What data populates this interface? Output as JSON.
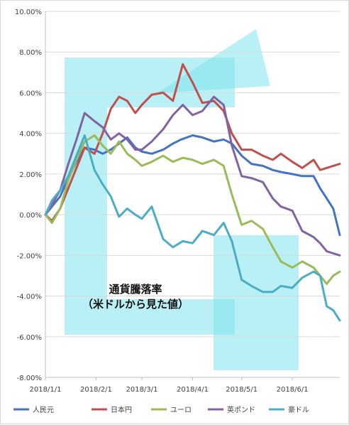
{
  "chart_data": {
    "type": "line",
    "title": "",
    "xlabel": "",
    "ylabel": "",
    "ylim": [
      -8,
      10
    ],
    "y_unit": "%",
    "y_ticks": [
      10,
      8,
      6,
      4,
      2,
      0,
      -2,
      -4,
      -6,
      -8
    ],
    "y_tick_labels": [
      "10.00%",
      "8.00%",
      "6.00%",
      "4.00%",
      "2.00%",
      "0.00%",
      "-2.00%",
      "-4.00%",
      "-6.00%",
      "-8.00%"
    ],
    "x_range": [
      "2018-01-01",
      "2018-06-30"
    ],
    "x_ticks": [
      "2018-01-01",
      "2018-02-01",
      "2018-03-01",
      "2018-04-01",
      "2018-05-01",
      "2018-06-01"
    ],
    "x_tick_labels": [
      "2018/1/1",
      "2018/2/1",
      "2018/3/1",
      "2018/4/1",
      "2018/5/1",
      "2018/6/1"
    ],
    "grid": "horizontal",
    "legend_position": "bottom",
    "annotation": [
      "通貨騰落率",
      "（米ドルから見た値）"
    ],
    "series": [
      {
        "name": "人民元",
        "color": "#4472C4",
        "points": [
          [
            "2018-01-01",
            0.0
          ],
          [
            "2018-01-05",
            0.4
          ],
          [
            "2018-01-10",
            0.9
          ],
          [
            "2018-01-15",
            1.8
          ],
          [
            "2018-01-20",
            2.6
          ],
          [
            "2018-01-25",
            3.3
          ],
          [
            "2018-01-31",
            3.2
          ],
          [
            "2018-02-05",
            3.0
          ],
          [
            "2018-02-10",
            3.2
          ],
          [
            "2018-02-15",
            3.5
          ],
          [
            "2018-02-20",
            3.8
          ],
          [
            "2018-02-25",
            3.3
          ],
          [
            "2018-03-01",
            3.1
          ],
          [
            "2018-03-07",
            3.0
          ],
          [
            "2018-03-14",
            3.2
          ],
          [
            "2018-03-20",
            3.5
          ],
          [
            "2018-03-25",
            3.7
          ],
          [
            "2018-04-01",
            3.9
          ],
          [
            "2018-04-07",
            3.8
          ],
          [
            "2018-04-14",
            3.6
          ],
          [
            "2018-04-20",
            3.7
          ],
          [
            "2018-04-25",
            3.5
          ],
          [
            "2018-05-01",
            2.9
          ],
          [
            "2018-05-07",
            2.5
          ],
          [
            "2018-05-14",
            2.4
          ],
          [
            "2018-05-20",
            2.2
          ],
          [
            "2018-05-25",
            2.1
          ],
          [
            "2018-06-01",
            2.0
          ],
          [
            "2018-06-07",
            1.9
          ],
          [
            "2018-06-14",
            1.9
          ],
          [
            "2018-06-18",
            1.3
          ],
          [
            "2018-06-22",
            0.8
          ],
          [
            "2018-06-26",
            0.3
          ],
          [
            "2018-06-30",
            -1.0
          ]
        ]
      },
      {
        "name": "日本円",
        "color": "#C0504D",
        "points": [
          [
            "2018-01-01",
            0.0
          ],
          [
            "2018-01-05",
            -0.3
          ],
          [
            "2018-01-10",
            0.3
          ],
          [
            "2018-01-15",
            1.3
          ],
          [
            "2018-01-20",
            2.3
          ],
          [
            "2018-01-25",
            3.3
          ],
          [
            "2018-01-31",
            3.0
          ],
          [
            "2018-02-05",
            4.0
          ],
          [
            "2018-02-10",
            5.2
          ],
          [
            "2018-02-15",
            5.8
          ],
          [
            "2018-02-20",
            5.6
          ],
          [
            "2018-02-25",
            5.0
          ],
          [
            "2018-03-01",
            5.4
          ],
          [
            "2018-03-07",
            5.9
          ],
          [
            "2018-03-14",
            6.0
          ],
          [
            "2018-03-20",
            5.6
          ],
          [
            "2018-03-26",
            7.4
          ],
          [
            "2018-04-01",
            6.5
          ],
          [
            "2018-04-07",
            5.5
          ],
          [
            "2018-04-14",
            5.6
          ],
          [
            "2018-04-20",
            5.1
          ],
          [
            "2018-04-25",
            4.0
          ],
          [
            "2018-05-01",
            3.2
          ],
          [
            "2018-05-07",
            3.2
          ],
          [
            "2018-05-14",
            2.9
          ],
          [
            "2018-05-20",
            2.7
          ],
          [
            "2018-05-25",
            3.0
          ],
          [
            "2018-06-01",
            2.6
          ],
          [
            "2018-06-07",
            2.3
          ],
          [
            "2018-06-14",
            2.7
          ],
          [
            "2018-06-18",
            2.2
          ],
          [
            "2018-06-22",
            2.3
          ],
          [
            "2018-06-26",
            2.4
          ],
          [
            "2018-06-30",
            2.5
          ]
        ]
      },
      {
        "name": "ユーロ",
        "color": "#9BBB59",
        "points": [
          [
            "2018-01-01",
            0.0
          ],
          [
            "2018-01-05",
            -0.4
          ],
          [
            "2018-01-10",
            0.3
          ],
          [
            "2018-01-15",
            1.7
          ],
          [
            "2018-01-20",
            2.7
          ],
          [
            "2018-01-25",
            3.6
          ],
          [
            "2018-01-31",
            3.9
          ],
          [
            "2018-02-05",
            3.4
          ],
          [
            "2018-02-10",
            3.0
          ],
          [
            "2018-02-15",
            3.6
          ],
          [
            "2018-02-20",
            3.0
          ],
          [
            "2018-02-25",
            2.7
          ],
          [
            "2018-03-01",
            2.4
          ],
          [
            "2018-03-07",
            2.6
          ],
          [
            "2018-03-14",
            2.9
          ],
          [
            "2018-03-20",
            2.6
          ],
          [
            "2018-03-26",
            2.8
          ],
          [
            "2018-04-01",
            2.7
          ],
          [
            "2018-04-07",
            2.5
          ],
          [
            "2018-04-14",
            2.7
          ],
          [
            "2018-04-20",
            2.4
          ],
          [
            "2018-04-25",
            1.0
          ],
          [
            "2018-05-01",
            -0.5
          ],
          [
            "2018-05-07",
            -0.3
          ],
          [
            "2018-05-14",
            -0.7
          ],
          [
            "2018-05-20",
            -1.6
          ],
          [
            "2018-05-25",
            -2.3
          ],
          [
            "2018-06-01",
            -2.6
          ],
          [
            "2018-06-07",
            -2.3
          ],
          [
            "2018-06-14",
            -2.6
          ],
          [
            "2018-06-18",
            -3.0
          ],
          [
            "2018-06-22",
            -3.4
          ],
          [
            "2018-06-26",
            -3.0
          ],
          [
            "2018-06-30",
            -2.8
          ]
        ]
      },
      {
        "name": "英ポンド",
        "color": "#8064A2",
        "points": [
          [
            "2018-01-01",
            0.0
          ],
          [
            "2018-01-05",
            0.5
          ],
          [
            "2018-01-10",
            1.2
          ],
          [
            "2018-01-15",
            2.5
          ],
          [
            "2018-01-20",
            3.7
          ],
          [
            "2018-01-25",
            5.0
          ],
          [
            "2018-01-31",
            4.6
          ],
          [
            "2018-02-05",
            4.3
          ],
          [
            "2018-02-10",
            3.7
          ],
          [
            "2018-02-15",
            4.0
          ],
          [
            "2018-02-20",
            3.7
          ],
          [
            "2018-02-25",
            3.2
          ],
          [
            "2018-03-01",
            3.2
          ],
          [
            "2018-03-07",
            3.6
          ],
          [
            "2018-03-14",
            4.2
          ],
          [
            "2018-03-20",
            4.9
          ],
          [
            "2018-03-26",
            5.4
          ],
          [
            "2018-04-01",
            4.9
          ],
          [
            "2018-04-07",
            5.1
          ],
          [
            "2018-04-14",
            5.8
          ],
          [
            "2018-04-20",
            5.4
          ],
          [
            "2018-04-25",
            3.4
          ],
          [
            "2018-05-01",
            1.9
          ],
          [
            "2018-05-07",
            1.8
          ],
          [
            "2018-05-14",
            1.6
          ],
          [
            "2018-05-20",
            0.8
          ],
          [
            "2018-05-25",
            0.4
          ],
          [
            "2018-06-01",
            0.2
          ],
          [
            "2018-06-07",
            -0.8
          ],
          [
            "2018-06-14",
            -1.1
          ],
          [
            "2018-06-18",
            -1.4
          ],
          [
            "2018-06-22",
            -1.8
          ],
          [
            "2018-06-26",
            -1.9
          ],
          [
            "2018-06-30",
            -2.0
          ]
        ]
      },
      {
        "name": "豪ドル",
        "color": "#4BACC6",
        "points": [
          [
            "2018-01-01",
            0.0
          ],
          [
            "2018-01-05",
            0.7
          ],
          [
            "2018-01-10",
            1.2
          ],
          [
            "2018-01-15",
            1.9
          ],
          [
            "2018-01-20",
            2.9
          ],
          [
            "2018-01-25",
            3.9
          ],
          [
            "2018-01-31",
            2.2
          ],
          [
            "2018-02-05",
            1.5
          ],
          [
            "2018-02-10",
            0.9
          ],
          [
            "2018-02-15",
            -0.1
          ],
          [
            "2018-02-20",
            0.3
          ],
          [
            "2018-02-25",
            0.0
          ],
          [
            "2018-03-01",
            -0.2
          ],
          [
            "2018-03-07",
            0.4
          ],
          [
            "2018-03-14",
            -1.2
          ],
          [
            "2018-03-20",
            -1.6
          ],
          [
            "2018-03-26",
            -1.3
          ],
          [
            "2018-04-01",
            -1.4
          ],
          [
            "2018-04-07",
            -0.8
          ],
          [
            "2018-04-14",
            -1.0
          ],
          [
            "2018-04-20",
            -0.4
          ],
          [
            "2018-04-25",
            -1.3
          ],
          [
            "2018-05-01",
            -3.2
          ],
          [
            "2018-05-07",
            -3.5
          ],
          [
            "2018-05-14",
            -3.8
          ],
          [
            "2018-05-20",
            -3.8
          ],
          [
            "2018-05-25",
            -3.5
          ],
          [
            "2018-06-01",
            -3.6
          ],
          [
            "2018-06-07",
            -3.1
          ],
          [
            "2018-06-14",
            -2.8
          ],
          [
            "2018-06-18",
            -3.0
          ],
          [
            "2018-06-22",
            -4.5
          ],
          [
            "2018-06-26",
            -4.7
          ],
          [
            "2018-06-30",
            -5.2
          ]
        ]
      }
    ]
  }
}
